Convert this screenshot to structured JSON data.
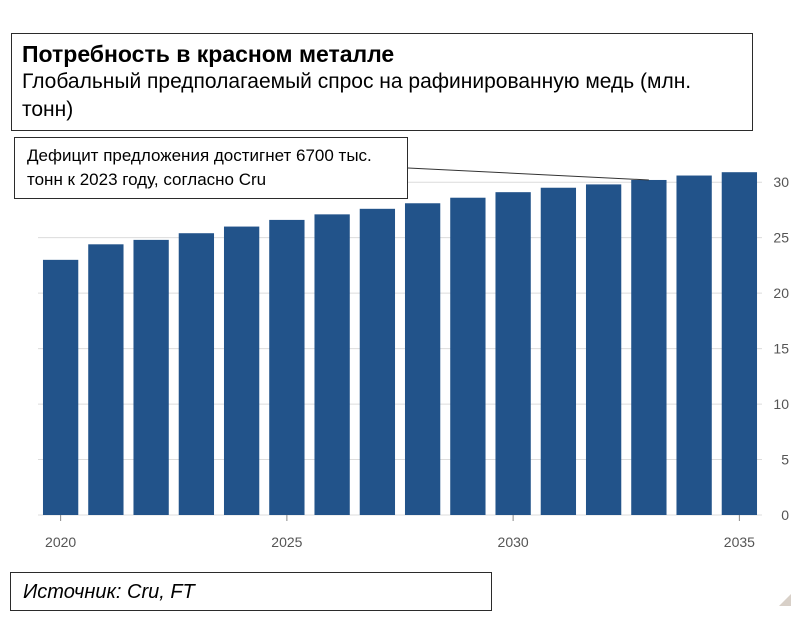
{
  "header": {
    "title": "Потребность в красном металле",
    "subtitle": "Глобальный предполагаемый спрос на рафинированную медь (млн. тонн)"
  },
  "annotation": {
    "text": "Дефицит предложения достигнет 6700 тыс. тонн к 2023 году, согласно Cru"
  },
  "source": {
    "text": "Источник: Cru, FT"
  },
  "colors": {
    "bar": "#22538a",
    "grid": "#dcdcdc",
    "tick_text": "#555555"
  },
  "chart_data": {
    "type": "bar",
    "categories": [
      "2020",
      "2021",
      "2022",
      "2023",
      "2024",
      "2025",
      "2026",
      "2027",
      "2028",
      "2029",
      "2030",
      "2031",
      "2032",
      "2033",
      "2034",
      "2035"
    ],
    "values": [
      23.0,
      24.4,
      24.8,
      25.4,
      26.0,
      26.6,
      27.1,
      27.6,
      28.1,
      28.6,
      29.1,
      29.5,
      29.8,
      30.2,
      30.6,
      30.9
    ],
    "x_tick_labels": [
      "2020",
      "2025",
      "2030",
      "2035"
    ],
    "y_ticks": [
      0,
      5,
      10,
      15,
      20,
      25,
      30
    ],
    "ylim": [
      0,
      32
    ],
    "yaxis_position": "right",
    "grid": true,
    "annotation_target": "2033"
  }
}
